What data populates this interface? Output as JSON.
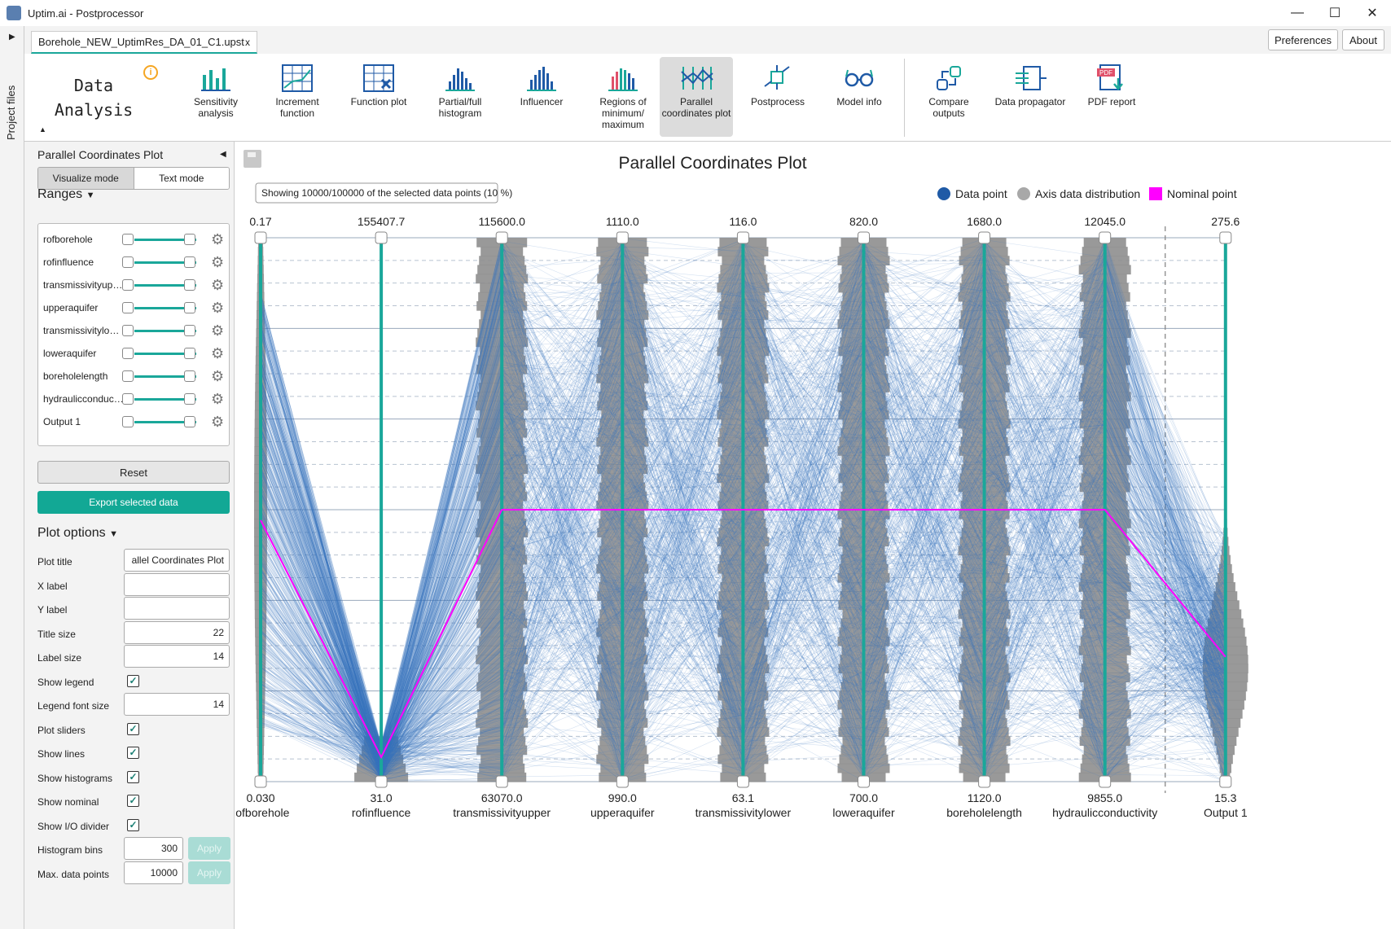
{
  "window": {
    "title": "Uptim.ai - Postprocessor",
    "minimize": "—",
    "maximize": "☐",
    "close": "✕"
  },
  "side_strip": {
    "label": "Project files"
  },
  "doc_tab": {
    "label": "Borehole_NEW_UptimRes_DA_01_C1.upst",
    "close": "x"
  },
  "top_buttons": {
    "preferences": "Preferences",
    "about": "About"
  },
  "ribbon": {
    "section_title": "Data Analysis",
    "info": "i",
    "buttons": [
      {
        "label": "Sensitivity analysis",
        "icon": "sensitivity-bars-icon"
      },
      {
        "label": "Increment function",
        "icon": "increment-grid-icon"
      },
      {
        "label": "Function plot",
        "icon": "function-plot-icon"
      },
      {
        "label": "Partial/full histogram",
        "icon": "histogram-icon"
      },
      {
        "label": "Influencer",
        "icon": "influencer-icon"
      },
      {
        "label": "Regions of minimum/ maximum",
        "icon": "regions-icon"
      },
      {
        "label": "Parallel coordinates plot",
        "icon": "parallel-coordinates-icon"
      },
      {
        "label": "Postprocess",
        "icon": "postprocess-icon"
      },
      {
        "label": "Model info",
        "icon": "glasses-icon"
      },
      {
        "label": "Compare outputs",
        "icon": "compare-icon"
      },
      {
        "label": "Data propagator",
        "icon": "propagator-icon"
      },
      {
        "label": "PDF report",
        "icon": "pdf-icon"
      }
    ]
  },
  "left_panel": {
    "title": "Parallel Coordinates Plot",
    "modes": [
      "Visualize mode",
      "Text mode"
    ],
    "ranges_title": "Ranges",
    "ranges": [
      "rofborehole",
      "rofinfluence",
      "transmissivityupper",
      "upperaquifer",
      "transmissivitylower",
      "loweraquifer",
      "boreholelength",
      "hydraulicconductivity",
      "Output 1"
    ],
    "reset": "Reset",
    "export": "Export selected data",
    "plot_options_title": "Plot options",
    "options": {
      "plot_title_label": "Plot title",
      "plot_title_value": "allel Coordinates Plot",
      "x_label": "X label",
      "x_value": "",
      "y_label": "Y label",
      "y_value": "",
      "title_size_label": "Title size",
      "title_size": "22",
      "label_size_label": "Label size",
      "label_size": "14",
      "show_legend": "Show legend",
      "legend_font_size_label": "Legend font size",
      "legend_font_size": "14",
      "plot_sliders": "Plot sliders",
      "show_lines": "Show lines",
      "show_histograms": "Show histograms",
      "show_nominal": "Show nominal",
      "show_io_divider": "Show I/O divider",
      "histogram_bins_label": "Histogram bins",
      "histogram_bins": "300",
      "max_points_label": "Max. data points",
      "max_points": "10000",
      "apply": "Apply",
      "check": "✓"
    }
  },
  "chart_data": {
    "type": "parallel-coordinates",
    "title": "Parallel Coordinates Plot",
    "info_text": "Showing 10000/100000 of the selected data points (10 %)",
    "legend": [
      {
        "name": "Data point",
        "color": "#1f5aa6"
      },
      {
        "name": "Axis data distribution",
        "color": "#a8a8a8"
      },
      {
        "name": "Nominal point",
        "color": "#ff00ff"
      }
    ],
    "axes": [
      {
        "name": "rofborehole",
        "max": "0.17",
        "min": "0.030",
        "nominal": 0.0973
      },
      {
        "name": "rofinfluence",
        "max": "155407.7",
        "min": "31.0",
        "nominal": 7000
      },
      {
        "name": "transmissivityupper",
        "max": "115600.0",
        "min": "63070.0",
        "nominal": 89335
      },
      {
        "name": "upperaquifer",
        "max": "1110.0",
        "min": "990.0",
        "nominal": 1050
      },
      {
        "name": "transmissivitylower",
        "max": "116.0",
        "min": "63.1",
        "nominal": 89.55
      },
      {
        "name": "loweraquifer",
        "max": "820.0",
        "min": "700.0",
        "nominal": 760
      },
      {
        "name": "boreholelength",
        "max": "1680.0",
        "min": "1120.0",
        "nominal": 1400
      },
      {
        "name": "hydraulicconductivity",
        "max": "12045.0",
        "min": "9855.0",
        "nominal": 10950
      },
      {
        "name": "Output 1",
        "max": "275.6",
        "min": "15.3",
        "nominal": 75
      }
    ],
    "io_divider_after": 8,
    "colors": {
      "axis": "#1aa79a",
      "lines": "#3d78bf",
      "hist": "#8e8e8e",
      "nominal": "#ff00ff"
    }
  }
}
